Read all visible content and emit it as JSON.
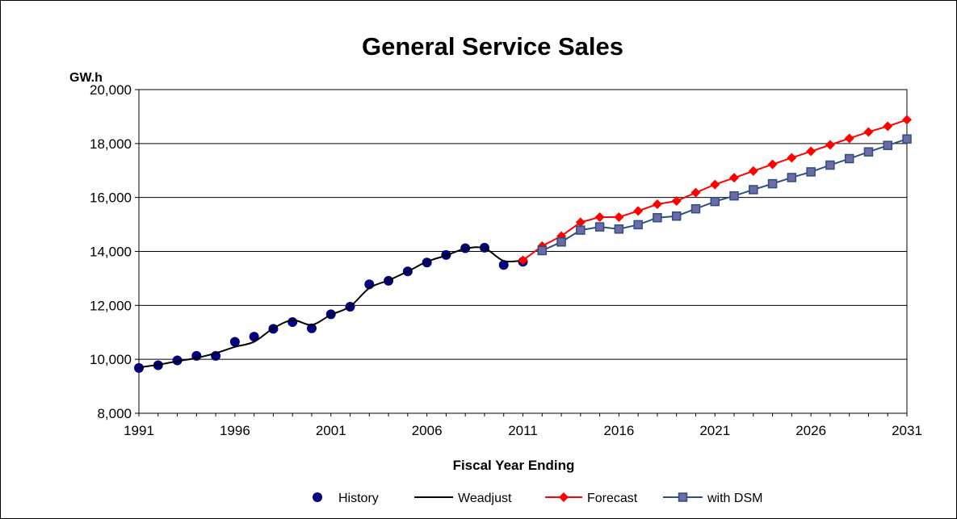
{
  "chart_data": {
    "type": "line",
    "title": "General Service Sales",
    "ylabel": "GW.h",
    "xlabel": "Fiscal Year Ending",
    "xlim": [
      1991,
      2031
    ],
    "ylim": [
      8000,
      20000
    ],
    "x_ticks": [
      "1991",
      "1996",
      "2001",
      "2006",
      "2011",
      "2016",
      "2021",
      "2026",
      "2031"
    ],
    "y_ticks": [
      "8,000",
      "10,000",
      "12,000",
      "14,000",
      "16,000",
      "18,000",
      "20,000"
    ],
    "grid": true,
    "legend_position": "bottom",
    "series": [
      {
        "name": "History",
        "style": "markers",
        "color": "#000080",
        "points": [
          [
            1991,
            9680
          ],
          [
            1992,
            9780
          ],
          [
            1993,
            9960
          ],
          [
            1994,
            10130
          ],
          [
            1995,
            10130
          ],
          [
            1996,
            10650
          ],
          [
            1997,
            10840
          ],
          [
            1998,
            11130
          ],
          [
            1999,
            11380
          ],
          [
            2000,
            11150
          ],
          [
            2001,
            11670
          ],
          [
            2002,
            11950
          ],
          [
            2003,
            12780
          ],
          [
            2004,
            12910
          ],
          [
            2005,
            13260
          ],
          [
            2006,
            13590
          ],
          [
            2007,
            13870
          ],
          [
            2008,
            14120
          ],
          [
            2009,
            14140
          ],
          [
            2010,
            13500
          ],
          [
            2011,
            13620
          ]
        ]
      },
      {
        "name": "Weadjust",
        "style": "line",
        "color": "#000000",
        "points": [
          [
            1991,
            9700
          ],
          [
            1992,
            9800
          ],
          [
            1993,
            9930
          ],
          [
            1994,
            10050
          ],
          [
            1995,
            10230
          ],
          [
            1996,
            10460
          ],
          [
            1997,
            10650
          ],
          [
            1998,
            11150
          ],
          [
            1999,
            11450
          ],
          [
            2000,
            11280
          ],
          [
            2001,
            11650
          ],
          [
            2002,
            11960
          ],
          [
            2003,
            12640
          ],
          [
            2004,
            12930
          ],
          [
            2005,
            13260
          ],
          [
            2006,
            13620
          ],
          [
            2007,
            13850
          ],
          [
            2008,
            14100
          ],
          [
            2009,
            14120
          ],
          [
            2010,
            13650
          ],
          [
            2011,
            13670
          ]
        ]
      },
      {
        "name": "Forecast",
        "style": "line-diamond",
        "color": "#ff0000",
        "points": [
          [
            2011,
            13670
          ],
          [
            2012,
            14200
          ],
          [
            2013,
            14570
          ],
          [
            2014,
            15080
          ],
          [
            2015,
            15270
          ],
          [
            2016,
            15270
          ],
          [
            2017,
            15500
          ],
          [
            2018,
            15750
          ],
          [
            2019,
            15870
          ],
          [
            2020,
            16180
          ],
          [
            2021,
            16480
          ],
          [
            2022,
            16730
          ],
          [
            2023,
            16980
          ],
          [
            2024,
            17230
          ],
          [
            2025,
            17470
          ],
          [
            2026,
            17710
          ],
          [
            2027,
            17950
          ],
          [
            2028,
            18190
          ],
          [
            2029,
            18430
          ],
          [
            2030,
            18640
          ],
          [
            2031,
            18880
          ]
        ]
      },
      {
        "name": "with DSM",
        "style": "line-square",
        "color": "#2f4f7f",
        "marker_fill": "#6b6ba8",
        "points": [
          [
            2012,
            14030
          ],
          [
            2013,
            14350
          ],
          [
            2014,
            14790
          ],
          [
            2015,
            14910
          ],
          [
            2016,
            14830
          ],
          [
            2017,
            14990
          ],
          [
            2018,
            15250
          ],
          [
            2019,
            15310
          ],
          [
            2020,
            15580
          ],
          [
            2021,
            15850
          ],
          [
            2022,
            16060
          ],
          [
            2023,
            16290
          ],
          [
            2024,
            16510
          ],
          [
            2025,
            16740
          ],
          [
            2026,
            16950
          ],
          [
            2027,
            17200
          ],
          [
            2028,
            17440
          ],
          [
            2029,
            17690
          ],
          [
            2030,
            17930
          ],
          [
            2031,
            18170
          ]
        ]
      }
    ]
  }
}
